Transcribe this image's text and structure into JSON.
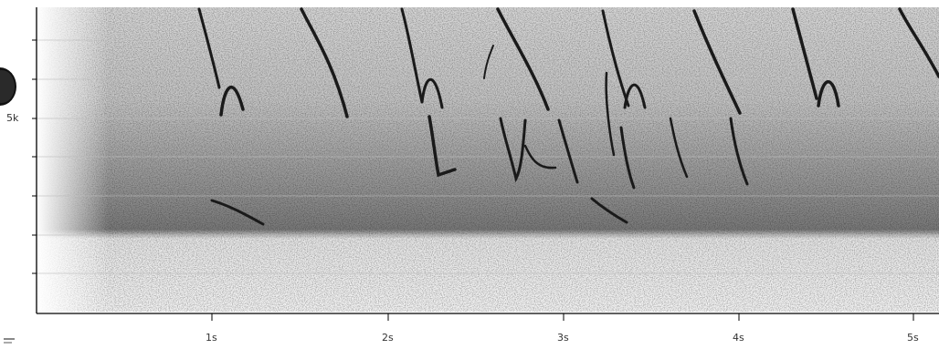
{
  "spectrogram": {
    "y_axis_label_5k": "5k",
    "x_axis_labels": [
      "1s",
      "2s",
      "3s",
      "4s",
      "5s"
    ],
    "colors": {
      "axis": "#000000",
      "label": "#333333",
      "background": "#ffffff",
      "noise": "#555555",
      "trace": "#1a1a1a"
    }
  },
  "controls": {
    "play_icon": "play-button-icon",
    "corner_icon": "menu-icon"
  }
}
